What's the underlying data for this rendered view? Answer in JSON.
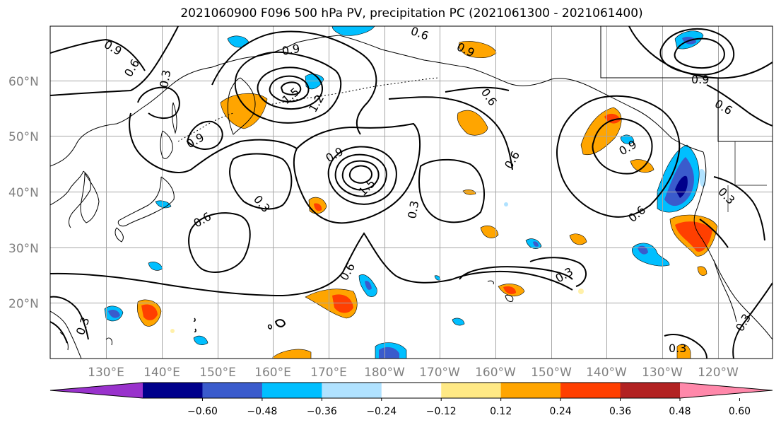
{
  "title": "2021060900 F096 500 hPa PV, precipitation PC (2021061300 - 2021061400)",
  "map": {
    "lat_labels": [
      "60°N",
      "50°N",
      "40°N",
      "30°N",
      "20°N"
    ],
    "lon_labels": [
      "130°E",
      "140°E",
      "150°E",
      "160°E",
      "170°E",
      "180°W",
      "170°W",
      "160°W",
      "150°W",
      "140°W",
      "130°W",
      "120°W"
    ],
    "contour_labels": [
      "0.9",
      "0.6",
      "0.3",
      "0.9",
      "1.2",
      "1.5",
      "0.6",
      "0.9",
      "0.9",
      "1.5",
      "0.6",
      "0.3",
      "0.9",
      "0.6",
      "0.3",
      "0.6",
      "0.9",
      "0.6",
      "0.6",
      "0.3",
      "0.6",
      "0.3",
      "0.9",
      "0.3",
      "0.3",
      "0.3"
    ]
  },
  "colorbar": {
    "ticks": [
      "−0.60",
      "−0.48",
      "−0.36",
      "−0.24",
      "−0.12",
      "0.12",
      "0.24",
      "0.36",
      "0.48",
      "0.60"
    ],
    "colors": [
      "#9932cc",
      "#00008b",
      "#3a5bcc",
      "#00bfff",
      "#b0e2ff",
      "#ffffff",
      "#ffe985",
      "#ffa500",
      "#ff3f00",
      "#b22222",
      "#ff88aa"
    ]
  }
}
